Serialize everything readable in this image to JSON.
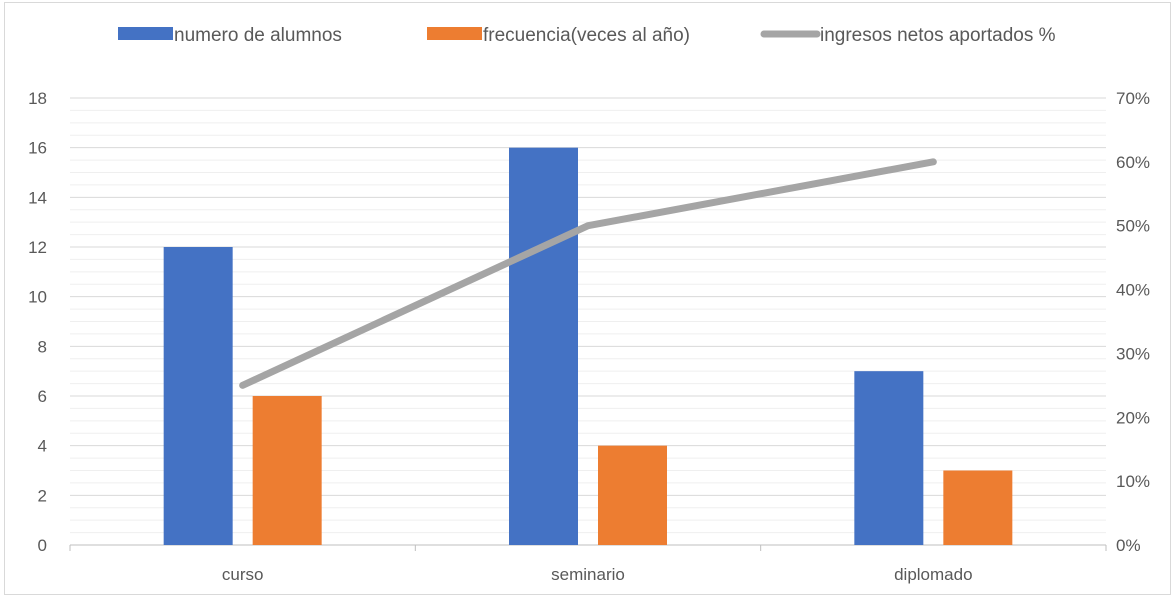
{
  "chart_data": {
    "type": "bar",
    "categories": [
      "curso",
      "seminario",
      "diplomado"
    ],
    "series": [
      {
        "name": "numero de alumnos",
        "kind": "bar",
        "axis": "left",
        "color": "#4472c4",
        "values": [
          12,
          16,
          7
        ]
      },
      {
        "name": "frecuencia(veces al año)",
        "kind": "bar",
        "axis": "left",
        "color": "#ed7d31",
        "values": [
          6,
          4,
          3
        ]
      },
      {
        "name": "ingresos netos aportados %",
        "kind": "line",
        "axis": "right",
        "color": "#a5a5a5",
        "values": [
          25,
          50,
          60
        ]
      }
    ],
    "y_left": {
      "ylim": [
        0,
        18
      ],
      "ticks": [
        "0",
        "2",
        "4",
        "6",
        "8",
        "10",
        "12",
        "14",
        "16",
        "18"
      ]
    },
    "y_right": {
      "ylim": [
        0,
        70
      ],
      "ticks": [
        "0%",
        "10%",
        "20%",
        "30%",
        "40%",
        "50%",
        "60%",
        "70%"
      ]
    },
    "legend_position": "top",
    "grid": true
  }
}
